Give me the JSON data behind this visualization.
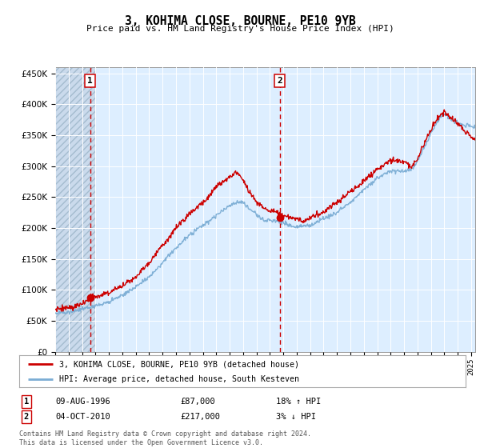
{
  "title": "3, KOHIMA CLOSE, BOURNE, PE10 9YB",
  "subtitle": "Price paid vs. HM Land Registry's House Price Index (HPI)",
  "legend_line1": "3, KOHIMA CLOSE, BOURNE, PE10 9YB (detached house)",
  "legend_line2": "HPI: Average price, detached house, South Kesteven",
  "annotation1_date": "09-AUG-1996",
  "annotation1_price": "£87,000",
  "annotation1_hpi": "18% ↑ HPI",
  "annotation1_year": 1996.6,
  "annotation1_value": 87000,
  "annotation2_date": "04-OCT-2010",
  "annotation2_price": "£217,000",
  "annotation2_hpi": "3% ↓ HPI",
  "annotation2_year": 2010.75,
  "annotation2_value": 217000,
  "footer": "Contains HM Land Registry data © Crown copyright and database right 2024.\nThis data is licensed under the Open Government Licence v3.0.",
  "price_color": "#cc0000",
  "hpi_color": "#7badd4",
  "background_plot": "#ddeeff",
  "background_hatch": "#c8d8ea",
  "grid_color": "#ffffff",
  "ylim": [
    0,
    460000
  ],
  "xlim_start": 1994.0,
  "xlim_end": 2025.3,
  "hatch_end": 1997.0
}
